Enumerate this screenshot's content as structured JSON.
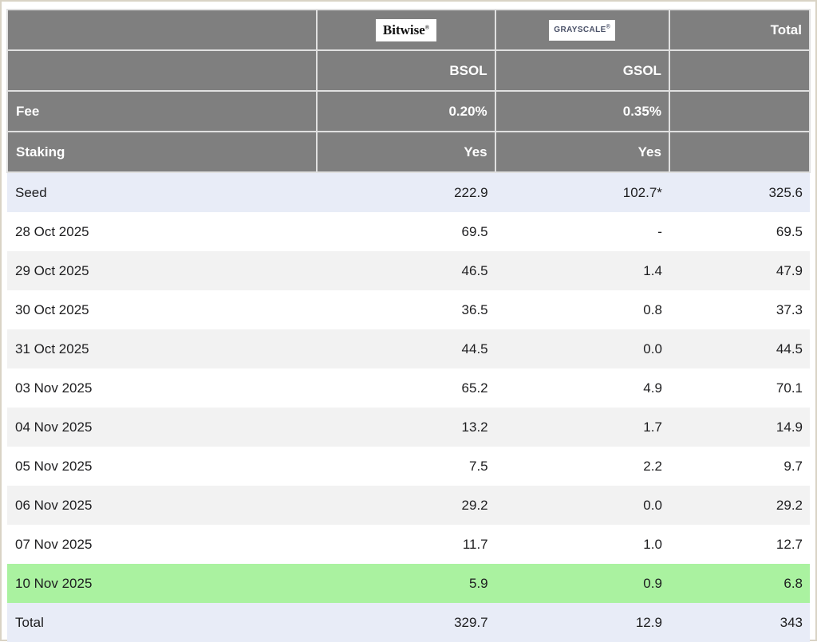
{
  "header": {
    "bitwise": {
      "text": "Bitwise",
      "mark": "®"
    },
    "grayscale": {
      "text": "GRAYSCALE",
      "mark": "®"
    },
    "total_label": "Total",
    "tickers": {
      "bsol": "BSOL",
      "gsol": "GSOL"
    },
    "fee": {
      "label": "Fee",
      "bsol": "0.20%",
      "gsol": "0.35%"
    },
    "staking": {
      "label": "Staking",
      "bsol": "Yes",
      "gsol": "Yes"
    }
  },
  "rows": [
    {
      "label": "Seed",
      "bsol": "222.9",
      "gsol": "102.7*",
      "total": "325.6",
      "style": "seed"
    },
    {
      "label": "28 Oct 2025",
      "bsol": "69.5",
      "gsol": "-",
      "total": "69.5",
      "style": "plain"
    },
    {
      "label": "29 Oct 2025",
      "bsol": "46.5",
      "gsol": "1.4",
      "total": "47.9",
      "style": "alt"
    },
    {
      "label": "30 Oct 2025",
      "bsol": "36.5",
      "gsol": "0.8",
      "total": "37.3",
      "style": "plain"
    },
    {
      "label": "31 Oct 2025",
      "bsol": "44.5",
      "gsol": "0.0",
      "total": "44.5",
      "style": "alt"
    },
    {
      "label": "03 Nov 2025",
      "bsol": "65.2",
      "gsol": "4.9",
      "total": "70.1",
      "style": "plain"
    },
    {
      "label": "04 Nov 2025",
      "bsol": "13.2",
      "gsol": "1.7",
      "total": "14.9",
      "style": "alt"
    },
    {
      "label": "05 Nov 2025",
      "bsol": "7.5",
      "gsol": "2.2",
      "total": "9.7",
      "style": "plain"
    },
    {
      "label": "06 Nov 2025",
      "bsol": "29.2",
      "gsol": "0.0",
      "total": "29.2",
      "style": "alt"
    },
    {
      "label": "07 Nov 2025",
      "bsol": "11.7",
      "gsol": "1.0",
      "total": "12.7",
      "style": "plain"
    },
    {
      "label": "10 Nov 2025",
      "bsol": "5.9",
      "gsol": "0.9",
      "total": "6.8",
      "style": "green"
    },
    {
      "label": "Total",
      "bsol": "329.7",
      "gsol": "12.9",
      "total": "343",
      "style": "totalrow"
    }
  ],
  "colors": {
    "header_gray": "#7f7f7f",
    "header_border": "#e0e0e0",
    "seed_total_row": "#e8ecf7",
    "alt_row": "#f2f2f2",
    "plain_row": "#ffffff",
    "green_row": "#aaf2a0",
    "frame_border": "#d9d3c5",
    "text_dark": "#1d1d1f",
    "grayscale_logo_color": "#4a5168"
  },
  "chart_data": {
    "type": "table",
    "columns": [
      "",
      "BSOL",
      "GSOL",
      "Total"
    ],
    "issuers": {
      "bsol": "Bitwise",
      "gsol": "GRAYSCALE"
    },
    "meta_rows": {
      "fee": {
        "label": "Fee",
        "bsol": "0.20%",
        "gsol": "0.35%"
      },
      "staking": {
        "label": "Staking",
        "bsol": "Yes",
        "gsol": "Yes"
      }
    },
    "categories": [
      "Seed",
      "28 Oct 2025",
      "29 Oct 2025",
      "30 Oct 2025",
      "31 Oct 2025",
      "03 Nov 2025",
      "04 Nov 2025",
      "05 Nov 2025",
      "06 Nov 2025",
      "07 Nov 2025",
      "10 Nov 2025",
      "Total"
    ],
    "series": [
      {
        "name": "BSOL",
        "values": [
          222.9,
          69.5,
          46.5,
          36.5,
          44.5,
          65.2,
          13.2,
          7.5,
          29.2,
          11.7,
          5.9,
          329.7
        ]
      },
      {
        "name": "GSOL",
        "values": [
          102.7,
          null,
          1.4,
          0.8,
          0.0,
          4.9,
          1.7,
          2.2,
          0.0,
          1.0,
          0.9,
          12.9
        ]
      },
      {
        "name": "Total",
        "values": [
          325.6,
          69.5,
          47.9,
          37.3,
          44.5,
          70.1,
          14.9,
          9.7,
          29.2,
          12.7,
          6.8,
          343
        ]
      }
    ],
    "annotations": {
      "gsol_seed_marker": "*",
      "missing_value_placeholder": "-"
    },
    "row_highlights": {
      "seed": "lavender",
      "latest_day_10_nov": "green",
      "total": "lavender"
    }
  }
}
